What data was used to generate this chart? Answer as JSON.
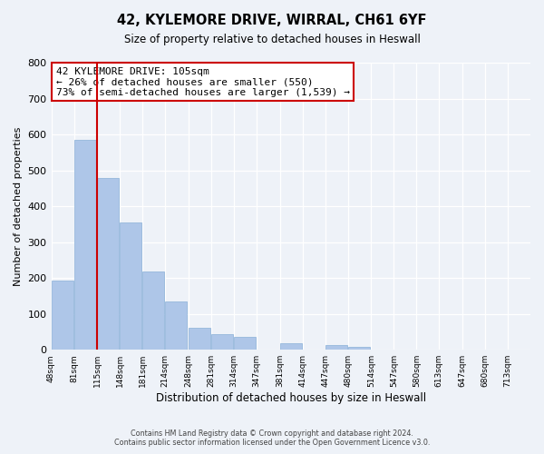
{
  "title": "42, KYLEMORE DRIVE, WIRRAL, CH61 6YF",
  "subtitle": "Size of property relative to detached houses in Heswall",
  "xlabel": "Distribution of detached houses by size in Heswall",
  "ylabel": "Number of detached properties",
  "bin_labels": [
    "48sqm",
    "81sqm",
    "115sqm",
    "148sqm",
    "181sqm",
    "214sqm",
    "248sqm",
    "281sqm",
    "314sqm",
    "347sqm",
    "381sqm",
    "414sqm",
    "447sqm",
    "480sqm",
    "514sqm",
    "547sqm",
    "580sqm",
    "613sqm",
    "647sqm",
    "680sqm",
    "713sqm"
  ],
  "bar_heights": [
    193,
    586,
    479,
    354,
    217,
    134,
    61,
    44,
    36,
    0,
    17,
    0,
    12,
    7,
    0,
    0,
    0,
    0,
    0,
    0,
    0
  ],
  "bar_color": "#aec6e8",
  "bar_edgecolor": "#8ab0d8",
  "property_line_color": "#cc0000",
  "annotation_title": "42 KYLEMORE DRIVE: 105sqm",
  "annotation_line1": "← 26% of detached houses are smaller (550)",
  "annotation_line2": "73% of semi-detached houses are larger (1,539) →",
  "ylim": [
    0,
    800
  ],
  "yticks": [
    0,
    100,
    200,
    300,
    400,
    500,
    600,
    700,
    800
  ],
  "footer_line1": "Contains HM Land Registry data © Crown copyright and database right 2024.",
  "footer_line2": "Contains public sector information licensed under the Open Government Licence v3.0.",
  "background_color": "#eef2f8",
  "grid_color": "#ffffff"
}
